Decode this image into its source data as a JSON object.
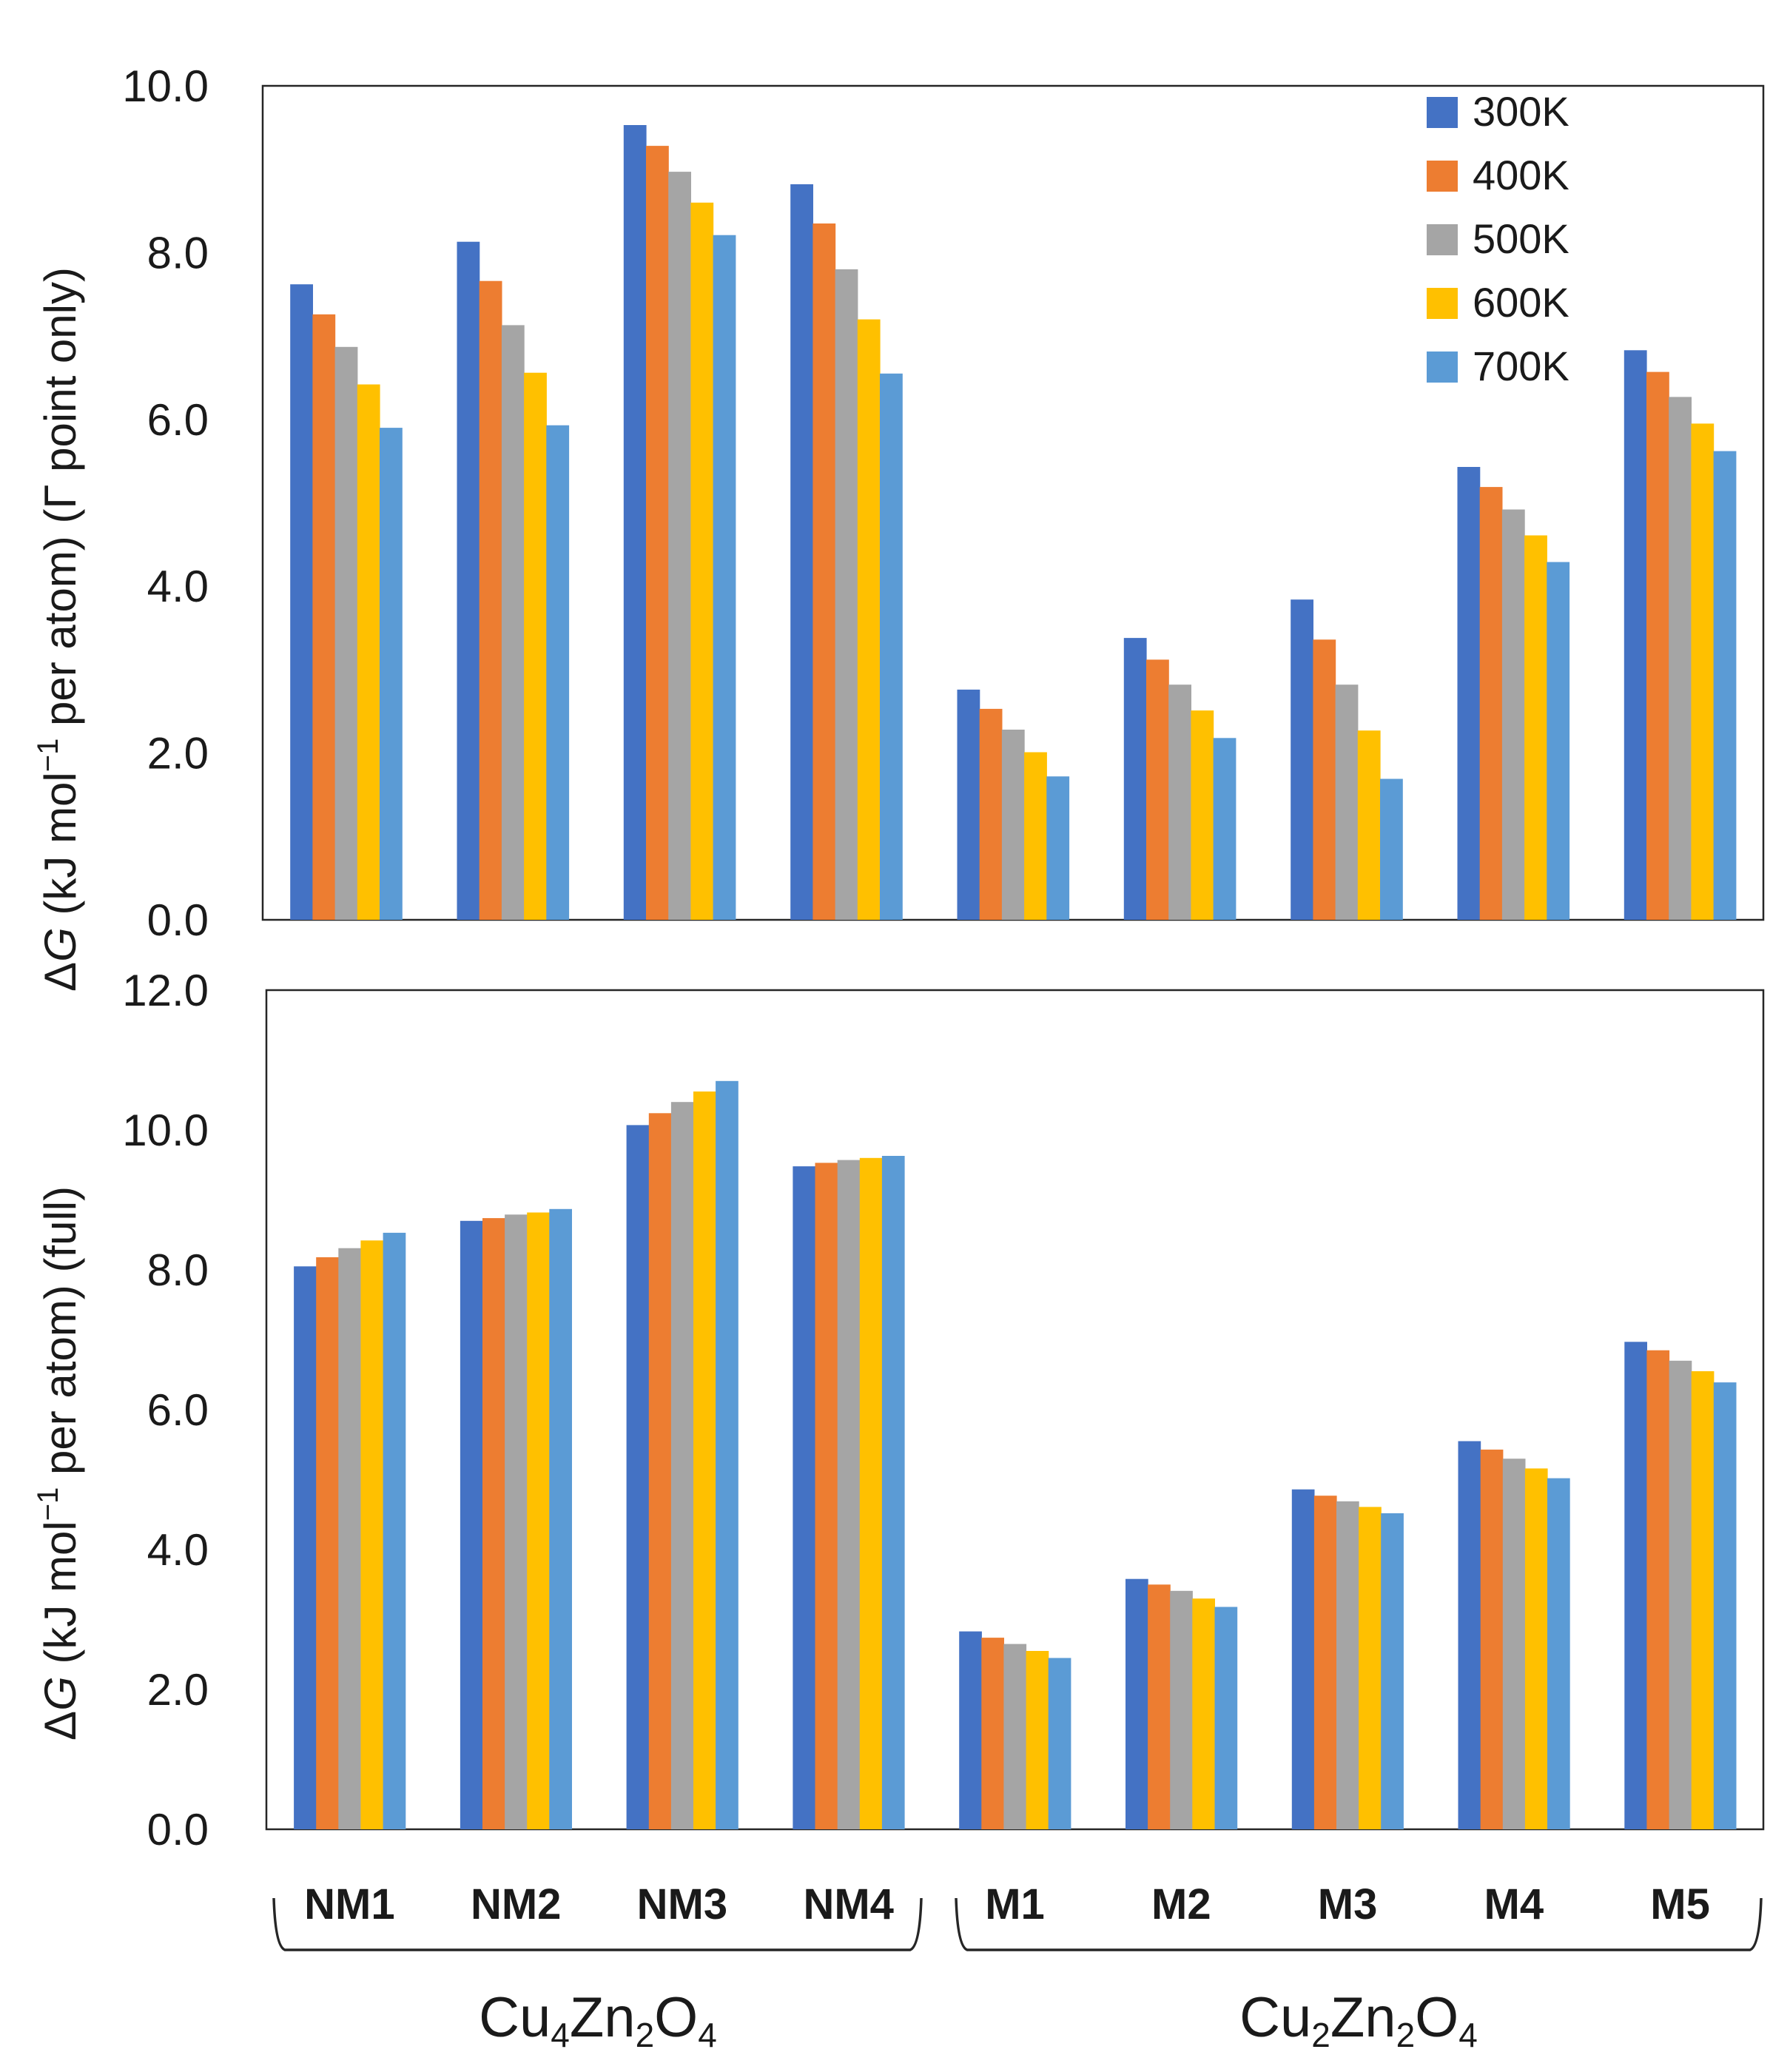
{
  "chart_data": [
    {
      "type": "bar",
      "title": "",
      "ylabel": "ΔG (kJ mol−1 per atom) (Γ point only)",
      "ylim": [
        0,
        10
      ],
      "yticks": [
        "0.0",
        "2.0",
        "4.0",
        "6.0",
        "8.0",
        "10.0"
      ],
      "categories": [
        "NM1",
        "NM2",
        "NM3",
        "NM4",
        "M1",
        "M2",
        "M3",
        "M4",
        "M5"
      ],
      "legend_position": "top-right",
      "series": [
        {
          "name": "300K",
          "color": "#4472C4",
          "values": [
            7.62,
            8.13,
            9.53,
            8.82,
            2.76,
            3.38,
            3.84,
            5.43,
            6.83
          ]
        },
        {
          "name": "400K",
          "color": "#ED7D31",
          "values": [
            7.26,
            7.66,
            9.28,
            8.35,
            2.53,
            3.12,
            3.36,
            5.19,
            6.57
          ]
        },
        {
          "name": "500K",
          "color": "#A5A5A5",
          "values": [
            6.87,
            7.13,
            8.97,
            7.8,
            2.28,
            2.82,
            2.82,
            4.92,
            6.27
          ]
        },
        {
          "name": "600K",
          "color": "#FFC000",
          "values": [
            6.42,
            6.56,
            8.6,
            7.2,
            2.01,
            2.51,
            2.27,
            4.61,
            5.95
          ]
        },
        {
          "name": "700K",
          "color": "#5B9BD5",
          "values": [
            5.9,
            5.93,
            8.21,
            6.55,
            1.72,
            2.18,
            1.69,
            4.29,
            5.62
          ]
        }
      ]
    },
    {
      "type": "bar",
      "title": "",
      "ylabel": "ΔG (kJ mol−1 per atom) (full)",
      "ylim": [
        0,
        12
      ],
      "yticks": [
        "0.0",
        "2.0",
        "4.0",
        "6.0",
        "8.0",
        "10.0",
        "12.0"
      ],
      "categories": [
        "NM1",
        "NM2",
        "NM3",
        "NM4",
        "M1",
        "M2",
        "M3",
        "M4",
        "M5"
      ],
      "series": [
        {
          "name": "300K",
          "color": "#4472C4",
          "values": [
            8.05,
            8.7,
            10.07,
            9.48,
            2.83,
            3.58,
            4.86,
            5.55,
            6.97
          ]
        },
        {
          "name": "400K",
          "color": "#ED7D31",
          "values": [
            8.18,
            8.74,
            10.24,
            9.53,
            2.74,
            3.5,
            4.77,
            5.43,
            6.85
          ]
        },
        {
          "name": "500K",
          "color": "#A5A5A5",
          "values": [
            8.31,
            8.79,
            10.4,
            9.57,
            2.65,
            3.41,
            4.69,
            5.3,
            6.7
          ]
        },
        {
          "name": "600K",
          "color": "#FFC000",
          "values": [
            8.42,
            8.82,
            10.55,
            9.6,
            2.55,
            3.3,
            4.61,
            5.16,
            6.55
          ]
        },
        {
          "name": "700K",
          "color": "#5B9BD5",
          "values": [
            8.53,
            8.87,
            10.7,
            9.63,
            2.45,
            3.18,
            4.52,
            5.02,
            6.39
          ]
        }
      ]
    }
  ],
  "labels": {
    "delta": "Δ",
    "G": "G",
    "y1_text": " (kJ mol",
    "y1_sup": "−1",
    "y1_tail": " per atom) (Γ point only)",
    "y2_text": " (kJ mol",
    "y2_sup": "−1",
    "y2_tail": " per atom) (full)"
  },
  "groups": [
    {
      "base": "Cu",
      "n1": "4",
      "mid": "Zn",
      "n2": "2",
      "end": "O",
      "n3": "4",
      "members": [
        "NM1",
        "NM2",
        "NM3",
        "NM4"
      ]
    },
    {
      "base": "Cu",
      "n1": "2",
      "mid": "Zn",
      "n2": "2",
      "end": "O",
      "n3": "4",
      "members": [
        "M1",
        "M2",
        "M3",
        "M4",
        "M5"
      ]
    }
  ]
}
